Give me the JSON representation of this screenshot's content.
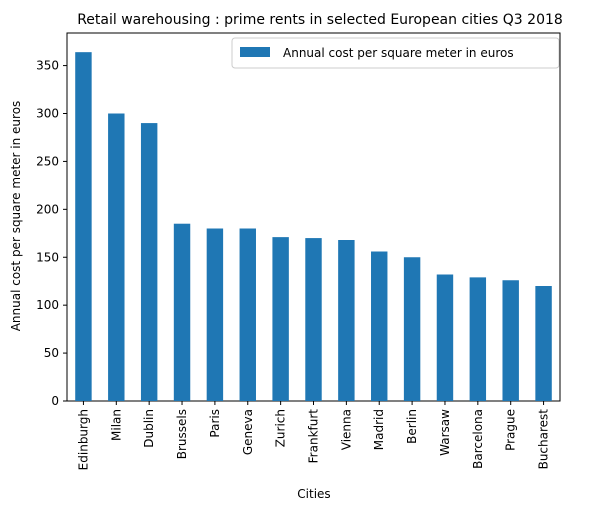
{
  "chart_data": {
    "type": "bar",
    "title": "Retail warehousing : prime rents in selected European cities Q3 2018",
    "xlabel": "Cities",
    "ylabel": "Annual cost per square meter in euros",
    "categories": [
      "Edinburgh",
      "Milan",
      "Dublin",
      "Brussels",
      "Paris",
      "Geneva",
      "Zurich",
      "Frankfurt",
      "Vienna",
      "Madrid",
      "Berlin",
      "Warsaw",
      "Barcelona",
      "Prague",
      "Bucharest"
    ],
    "series": [
      {
        "name": "Annual cost per square meter in euros",
        "values": [
          364,
          300,
          290,
          185,
          180,
          180,
          171,
          170,
          168,
          156,
          150,
          132,
          129,
          126,
          120
        ],
        "color": "#1f77b4"
      }
    ],
    "ylim": [
      0,
      384
    ],
    "yticks": [
      "0",
      "50",
      "100",
      "150",
      "200",
      "250",
      "300",
      "350"
    ],
    "grid": false,
    "legend_position": "top-right"
  }
}
